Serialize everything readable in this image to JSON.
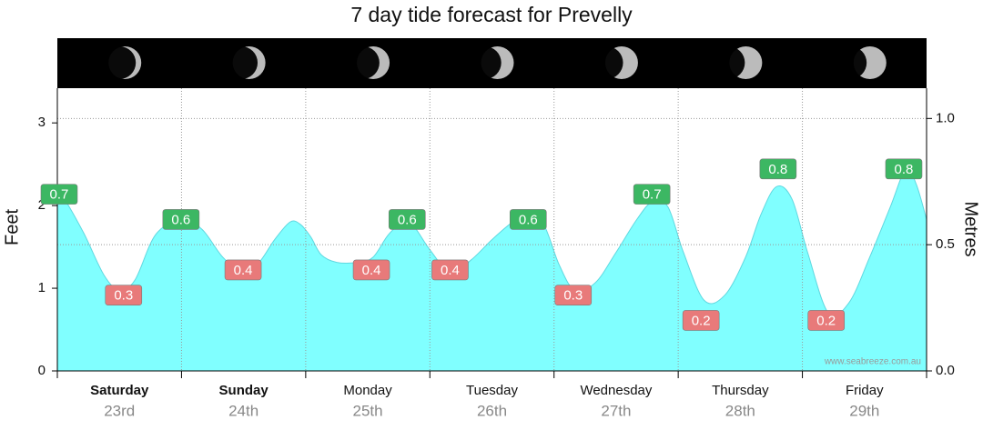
{
  "chart_data": {
    "type": "area",
    "title": "7 day tide forecast for Prevelly",
    "ylabel": "Feet",
    "y2label": "Metres",
    "watermark": "www.seabreeze.com.au",
    "categories": [
      "Saturday",
      "Sunday",
      "Monday",
      "Tuesday",
      "Wednesday",
      "Thursday",
      "Friday"
    ],
    "dates": [
      "23rd",
      "24th",
      "25th",
      "26th",
      "27th",
      "28th",
      "29th"
    ],
    "bold": [
      true,
      true,
      false,
      false,
      false,
      false,
      false
    ],
    "xlim": [
      0,
      168
    ],
    "xticks": [
      0,
      24,
      48,
      72,
      96,
      120,
      144,
      168
    ],
    "ylim": [
      0,
      3.42
    ],
    "yticks": [
      0,
      1,
      2,
      3
    ],
    "y2lim": [
      0,
      1.12
    ],
    "y2ticks": [
      {
        "value": 0,
        "label": "0.0"
      },
      {
        "value": 0.5,
        "label": "0.5"
      },
      {
        "value": 1,
        "label": "1.0"
      }
    ],
    "grid": true,
    "x": [
      0,
      1,
      5,
      9,
      12,
      15,
      19,
      24,
      28,
      32,
      36,
      39,
      42,
      45,
      47,
      49,
      51,
      54,
      58,
      61,
      64,
      67,
      69,
      72,
      76,
      80,
      84,
      88,
      91,
      94,
      97,
      100,
      104,
      108,
      112,
      115,
      118,
      121,
      125,
      129,
      133,
      136,
      139,
      142,
      145,
      149,
      153,
      157,
      161,
      164,
      166,
      168
    ],
    "series": [
      {
        "color": "#80ffff",
        "axis": "y2",
        "values": [
          0.67,
          0.69,
          0.55,
          0.38,
          0.32,
          0.36,
          0.54,
          0.6,
          0.56,
          0.45,
          0.39,
          0.43,
          0.52,
          0.59,
          0.58,
          0.53,
          0.46,
          0.43,
          0.43,
          0.45,
          0.54,
          0.59,
          0.57,
          0.48,
          0.39,
          0.44,
          0.52,
          0.59,
          0.62,
          0.58,
          0.42,
          0.32,
          0.35,
          0.47,
          0.6,
          0.67,
          0.65,
          0.47,
          0.28,
          0.3,
          0.45,
          0.62,
          0.73,
          0.68,
          0.47,
          0.23,
          0.27,
          0.45,
          0.65,
          0.8,
          0.74,
          0.6
        ]
      }
    ],
    "extremes": {
      "x": [
        0.35,
        12.8,
        23.9,
        35.9,
        60.7,
        67.6,
        75.9,
        91,
        99.7,
        114.9,
        124.4,
        139.3,
        148.6,
        163.6
      ],
      "values": [
        0.7,
        0.3,
        0.6,
        0.4,
        0.4,
        0.6,
        0.4,
        0.6,
        0.3,
        0.7,
        0.2,
        0.8,
        0.2,
        0.8
      ],
      "colors": [
        "#3cb763",
        "#e87a7a",
        "#3cb763",
        "#e87a7a",
        "#e87a7a",
        "#3cb763",
        "#e87a7a",
        "#3cb763",
        "#e87a7a",
        "#3cb763",
        "#e87a7a",
        "#3cb763",
        "#e87a7a",
        "#3cb763"
      ]
    }
  }
}
